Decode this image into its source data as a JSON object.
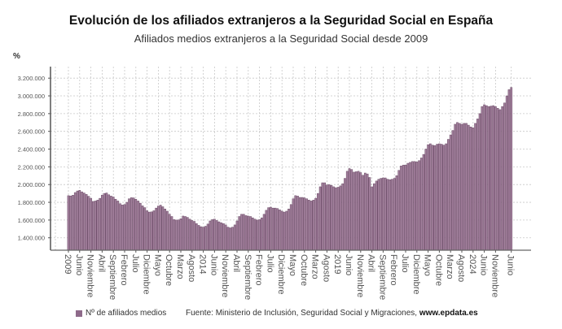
{
  "chart_data": {
    "type": "bar",
    "title": "Evolución de los afiliados extranjeros a la Seguridad Social en España",
    "subtitle": "Afiliados medios extranjeros a la Seguridad Social desde 2009",
    "ylabel": "%",
    "xlabel": "",
    "start_month": "2009-01",
    "frequency": "monthly",
    "ylim": [
      1260000,
      3330000
    ],
    "yticks": [
      1400000,
      1600000,
      1800000,
      2000000,
      2200000,
      2400000,
      2600000,
      2800000,
      3000000,
      3200000
    ],
    "ytick_labels": [
      "1.400.000",
      "1.600.000",
      "1.800.000",
      "2.000.000",
      "2.200.000",
      "2.400.000",
      "2.600.000",
      "2.800.000",
      "3.000.000",
      "3.200.000"
    ],
    "grid": true,
    "legend_position": "bottom-left",
    "series": [
      {
        "name": "Nº de afiliados medios",
        "color": "#a27f9c",
        "values": [
          1875000,
          1872000,
          1880000,
          1910000,
          1928000,
          1935000,
          1918000,
          1905000,
          1890000,
          1868000,
          1845000,
          1810000,
          1815000,
          1825000,
          1845000,
          1880000,
          1900000,
          1905000,
          1885000,
          1870000,
          1860000,
          1835000,
          1815000,
          1785000,
          1770000,
          1775000,
          1800000,
          1840000,
          1852000,
          1850000,
          1835000,
          1815000,
          1790000,
          1760000,
          1740000,
          1705000,
          1690000,
          1692000,
          1705000,
          1735000,
          1758000,
          1768000,
          1750000,
          1725000,
          1700000,
          1665000,
          1640000,
          1605000,
          1600000,
          1602000,
          1615000,
          1645000,
          1640000,
          1630000,
          1610000,
          1595000,
          1585000,
          1560000,
          1540000,
          1525000,
          1520000,
          1530000,
          1555000,
          1590000,
          1605000,
          1610000,
          1595000,
          1580000,
          1570000,
          1560000,
          1545000,
          1520000,
          1512000,
          1520000,
          1545000,
          1590000,
          1640000,
          1665000,
          1665000,
          1650000,
          1645000,
          1640000,
          1625000,
          1610000,
          1600000,
          1605000,
          1625000,
          1665000,
          1710000,
          1740000,
          1745000,
          1735000,
          1735000,
          1730000,
          1715000,
          1700000,
          1690000,
          1700000,
          1725000,
          1775000,
          1840000,
          1875000,
          1870000,
          1855000,
          1855000,
          1850000,
          1840000,
          1825000,
          1815000,
          1825000,
          1845000,
          1900000,
          1975000,
          2020000,
          2020000,
          1995000,
          2000000,
          1990000,
          1975000,
          1965000,
          1970000,
          1985000,
          2010000,
          2070000,
          2150000,
          2180000,
          2170000,
          2140000,
          2145000,
          2150000,
          2135000,
          2105000,
          2130000,
          2120000,
          2080000,
          1975000,
          2010000,
          2040000,
          2060000,
          2070000,
          2075000,
          2075000,
          2060000,
          2055000,
          2060000,
          2070000,
          2100000,
          2160000,
          2210000,
          2220000,
          2220000,
          2240000,
          2250000,
          2260000,
          2260000,
          2255000,
          2270000,
          2300000,
          2340000,
          2400000,
          2450000,
          2460000,
          2445000,
          2440000,
          2455000,
          2460000,
          2455000,
          2445000,
          2460000,
          2510000,
          2560000,
          2610000,
          2680000,
          2700000,
          2690000,
          2680000,
          2690000,
          2690000,
          2670000,
          2650000,
          2640000,
          2690000,
          2740000,
          2800000,
          2880000,
          2900000,
          2890000,
          2880000,
          2885000,
          2890000,
          2880000,
          2860000,
          2845000,
          2880000,
          2920000,
          3000000,
          3070000,
          3095000
        ]
      }
    ],
    "xtick_labels": [
      {
        "month": "2009-01",
        "label": "2009"
      },
      {
        "month": "2009-06",
        "label": "Junio"
      },
      {
        "month": "2009-11",
        "label": "Noviembre"
      },
      {
        "month": "2010-04",
        "label": "Abril"
      },
      {
        "month": "2010-09",
        "label": "Septiembre"
      },
      {
        "month": "2011-02",
        "label": "Febrero"
      },
      {
        "month": "2011-07",
        "label": "Julio"
      },
      {
        "month": "2011-12",
        "label": "Diciembre"
      },
      {
        "month": "2012-05",
        "label": "Mayo"
      },
      {
        "month": "2012-10",
        "label": "Octubre"
      },
      {
        "month": "2013-03",
        "label": "Marzo"
      },
      {
        "month": "2013-08",
        "label": "Agosto"
      },
      {
        "month": "2014-01",
        "label": "2014"
      },
      {
        "month": "2014-06",
        "label": "Junio"
      },
      {
        "month": "2014-11",
        "label": "Noviembre"
      },
      {
        "month": "2015-04",
        "label": "Abril"
      },
      {
        "month": "2015-09",
        "label": "Septiembre"
      },
      {
        "month": "2016-02",
        "label": "Febrero"
      },
      {
        "month": "2016-07",
        "label": "Julio"
      },
      {
        "month": "2016-12",
        "label": "Diciembre"
      },
      {
        "month": "2017-05",
        "label": "Mayo"
      },
      {
        "month": "2017-10",
        "label": "Octubre"
      },
      {
        "month": "2018-03",
        "label": "Marzo"
      },
      {
        "month": "2018-08",
        "label": "Agosto"
      },
      {
        "month": "2019-01",
        "label": "2019"
      },
      {
        "month": "2019-06",
        "label": "Junio"
      },
      {
        "month": "2019-11",
        "label": "Noviembre"
      },
      {
        "month": "2020-04",
        "label": "Abril"
      },
      {
        "month": "2020-09",
        "label": "Septiembre"
      },
      {
        "month": "2021-02",
        "label": "Febrero"
      },
      {
        "month": "2021-07",
        "label": "Julio"
      },
      {
        "month": "2021-12",
        "label": "Diciembre"
      },
      {
        "month": "2022-05",
        "label": "Mayo"
      },
      {
        "month": "2022-10",
        "label": "Octubre"
      },
      {
        "month": "2023-03",
        "label": "Marzo"
      },
      {
        "month": "2023-08",
        "label": "Agosto"
      },
      {
        "month": "2024-01",
        "label": "2024"
      },
      {
        "month": "2024-06",
        "label": "Junio"
      },
      {
        "month": "2024-11",
        "label": "Noviembre"
      },
      {
        "month": "2025-06",
        "label": "Junio"
      }
    ]
  },
  "legend": {
    "label": "Nº de afiliados medios"
  },
  "source": {
    "text": "Fuente: Ministerio de Inclusión, Seguridad Social y Migraciones, ",
    "site": "www.epdata.es"
  }
}
